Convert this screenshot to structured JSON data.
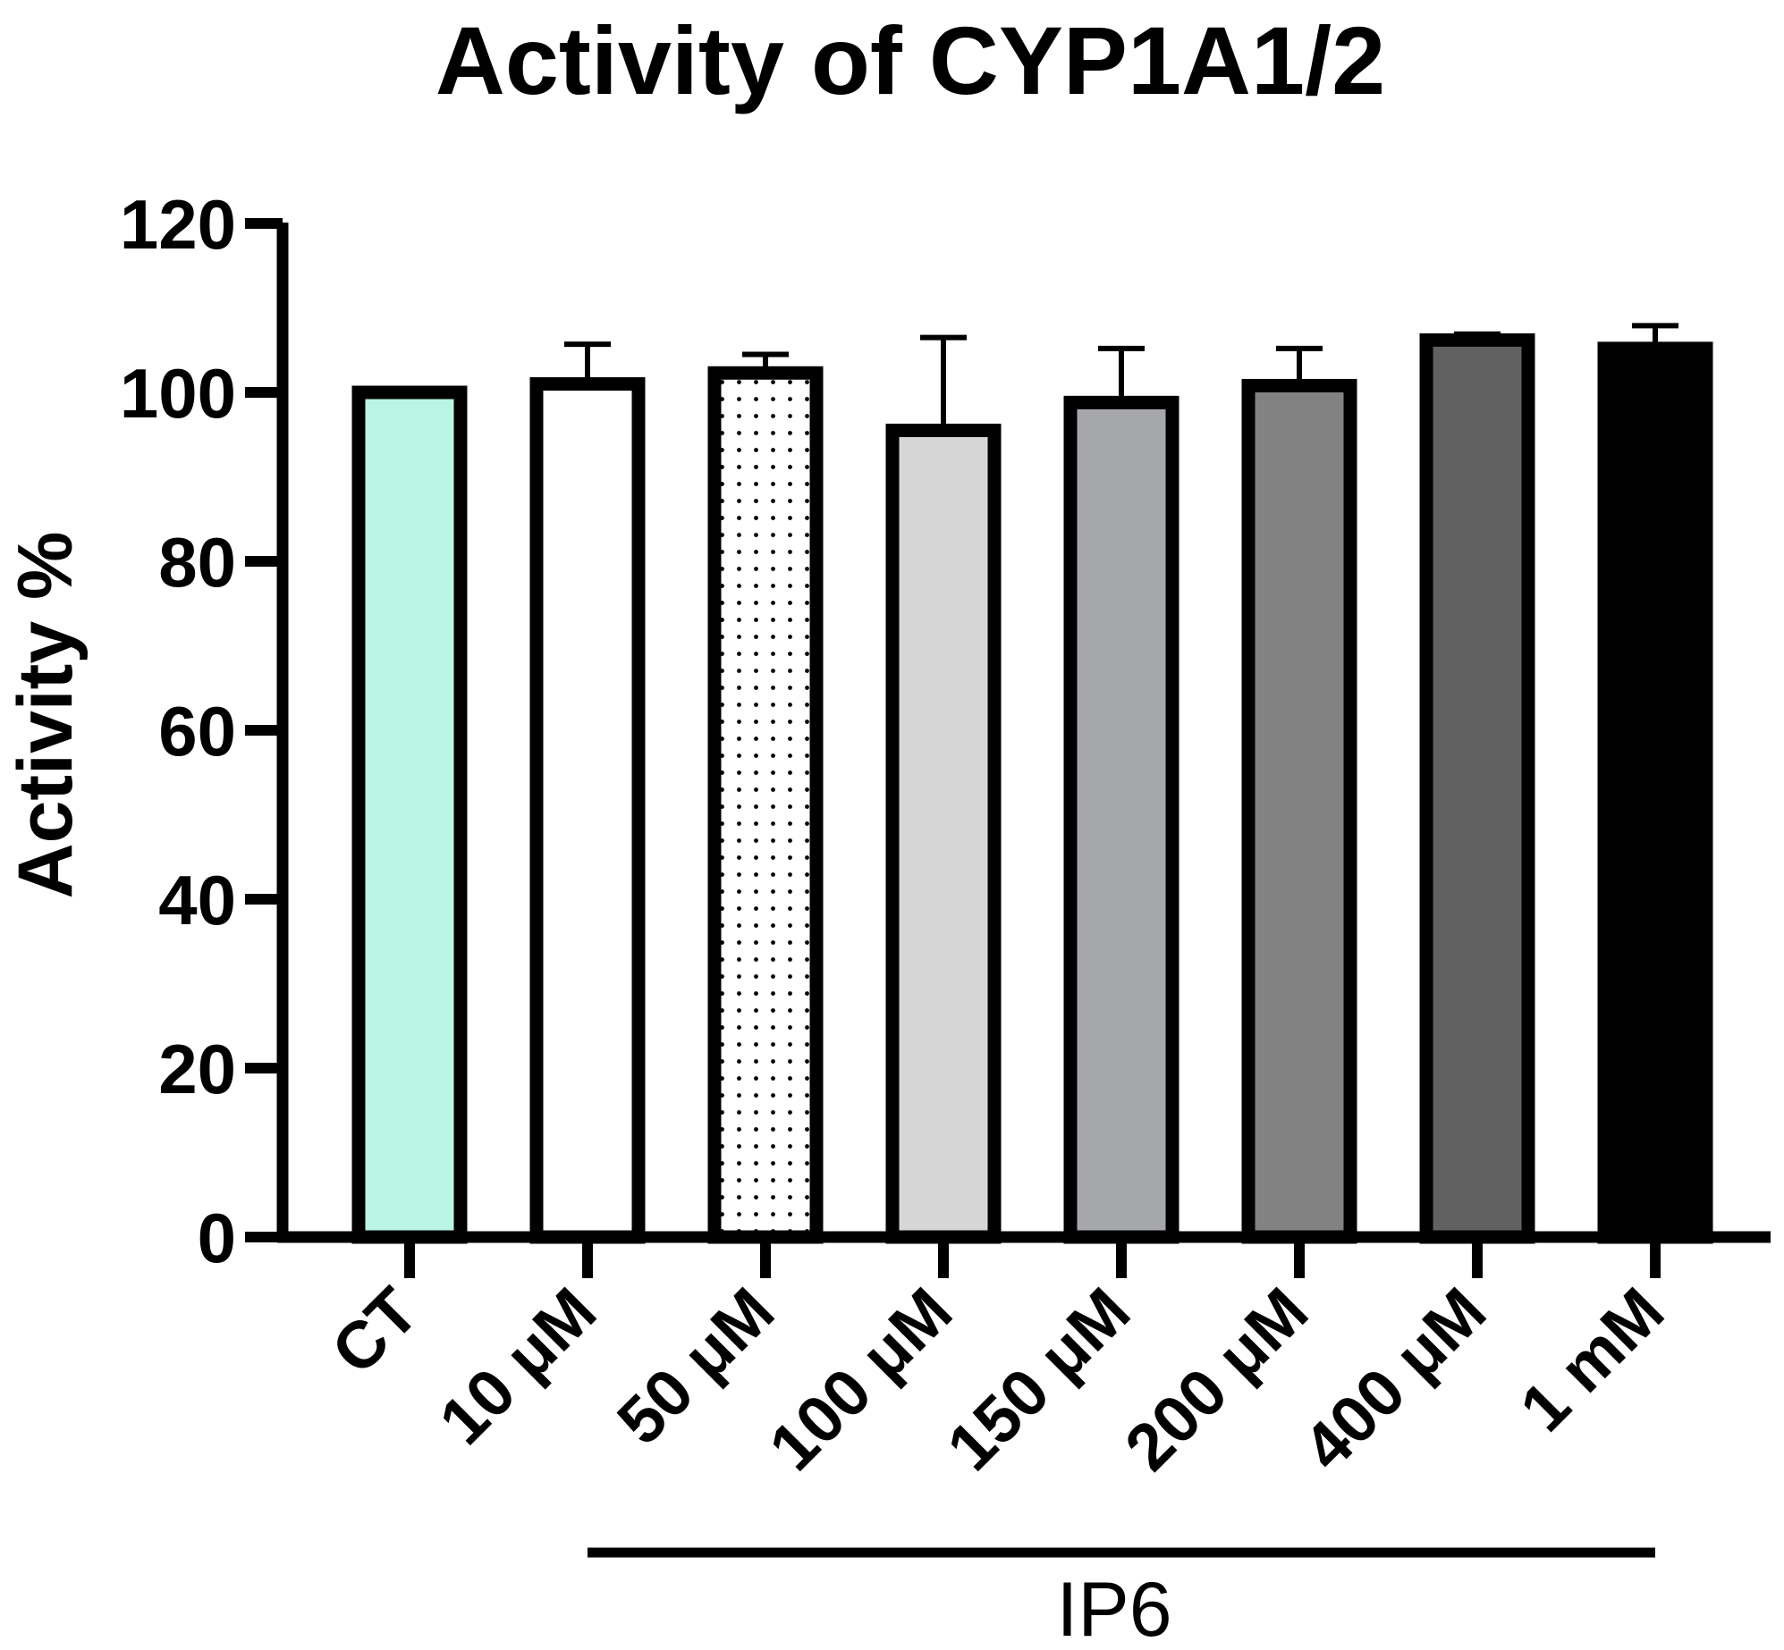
{
  "chart_data": {
    "type": "bar",
    "title": "Activity of CYP1A1/2",
    "xlabel": "",
    "ylabel": "Activity %",
    "ylim": [
      0,
      120
    ],
    "yticks": [
      "0",
      "20",
      "40",
      "60",
      "80",
      "100",
      "120"
    ],
    "categories": [
      "CT",
      "10 μM",
      "50 μM",
      "100 μM",
      "150 μM",
      "200 μM",
      "400 μM",
      "1 mM"
    ],
    "values": [
      100,
      101,
      102.3,
      95.5,
      98.8,
      100.8,
      106.2,
      105.2
    ],
    "errors": [
      0,
      4.7,
      2.2,
      11,
      6.4,
      4.4,
      0.7,
      2.7
    ],
    "fills": [
      "#baf5e4",
      "#ffffff",
      "pattern-dots",
      "#d6d6d6",
      "#a6a7aa",
      "#828282",
      "#616161",
      "#000000"
    ],
    "group_label": "IP6",
    "group_start_index": 1,
    "grid": false,
    "legend": "none"
  }
}
